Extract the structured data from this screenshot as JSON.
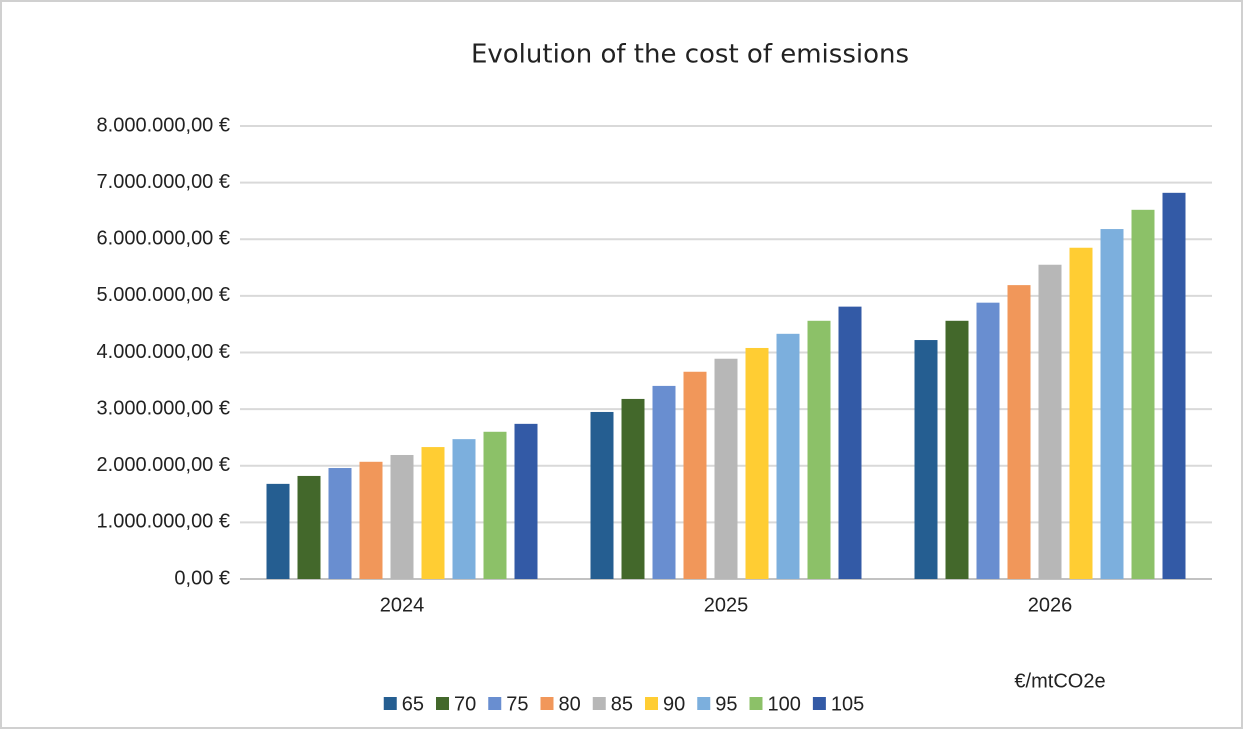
{
  "chart_data": {
    "type": "bar",
    "title": "Evolution of the cost of emissions",
    "categories": [
      "2024",
      "2025",
      "2026"
    ],
    "series": [
      {
        "name": "65",
        "color": "#255e91",
        "values": [
          1680000,
          2950000,
          4220000
        ]
      },
      {
        "name": "70",
        "color": "#43682b",
        "values": [
          1820000,
          3180000,
          4560000
        ]
      },
      {
        "name": "75",
        "color": "#698ed0",
        "values": [
          1960000,
          3410000,
          4880000
        ]
      },
      {
        "name": "80",
        "color": "#f1975a",
        "values": [
          2070000,
          3660000,
          5190000
        ]
      },
      {
        "name": "85",
        "color": "#b7b7b7",
        "values": [
          2190000,
          3890000,
          5550000
        ]
      },
      {
        "name": "90",
        "color": "#ffcd33",
        "values": [
          2330000,
          4080000,
          5850000
        ]
      },
      {
        "name": "95",
        "color": "#7cafdd",
        "values": [
          2470000,
          4330000,
          6180000
        ]
      },
      {
        "name": "100",
        "color": "#8cc168",
        "values": [
          2600000,
          4560000,
          6520000
        ]
      },
      {
        "name": "105",
        "color": "#335aa6",
        "values": [
          2740000,
          4810000,
          6820000
        ]
      }
    ],
    "ylim": [
      0,
      8000000
    ],
    "yticks": [
      {
        "value": 0,
        "label": "0,00 €"
      },
      {
        "value": 1000000,
        "label": "1.000.000,00 €"
      },
      {
        "value": 2000000,
        "label": "2.000.000,00 €"
      },
      {
        "value": 3000000,
        "label": "3.000.000,00 €"
      },
      {
        "value": 4000000,
        "label": "4.000.000,00 €"
      },
      {
        "value": 5000000,
        "label": "5.000.000,00 €"
      },
      {
        "value": 6000000,
        "label": "6.000.000,00 €"
      },
      {
        "value": 7000000,
        "label": "7.000.000,00 €"
      },
      {
        "value": 8000000,
        "label": "8.000.000,00 €"
      }
    ],
    "annotation": "€/mtCO2e",
    "grid": true,
    "legend": "bottom"
  }
}
